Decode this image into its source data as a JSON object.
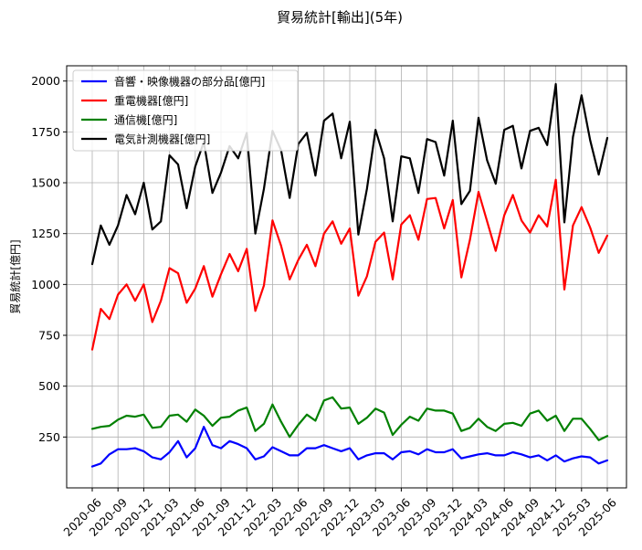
{
  "chart_data": {
    "type": "line",
    "title": "貿易統計[輸出](5年)",
    "xlabel": "",
    "ylabel": "貿易統計[億円]",
    "ylim": [
      0,
      2075
    ],
    "yticks": [
      250,
      500,
      750,
      1000,
      1250,
      1500,
      1750,
      2000
    ],
    "xtick_labels": [
      "2020-06",
      "2020-09",
      "2020-12",
      "2021-03",
      "2021-06",
      "2021-09",
      "2021-12",
      "2022-03",
      "2022-06",
      "2022-09",
      "2022-12",
      "2023-03",
      "2023-06",
      "2023-09",
      "2023-12",
      "2024-03",
      "2024-06",
      "2024-09",
      "2024-12",
      "2025-03",
      "2025-06"
    ],
    "grid": true,
    "legend_position": "top-left",
    "categories": [
      "2020-06",
      "2020-07",
      "2020-08",
      "2020-09",
      "2020-10",
      "2020-11",
      "2020-12",
      "2021-01",
      "2021-02",
      "2021-03",
      "2021-04",
      "2021-05",
      "2021-06",
      "2021-07",
      "2021-08",
      "2021-09",
      "2021-10",
      "2021-11",
      "2021-12",
      "2022-01",
      "2022-02",
      "2022-03",
      "2022-04",
      "2022-05",
      "2022-06",
      "2022-07",
      "2022-08",
      "2022-09",
      "2022-10",
      "2022-11",
      "2022-12",
      "2023-01",
      "2023-02",
      "2023-03",
      "2023-04",
      "2023-05",
      "2023-06",
      "2023-07",
      "2023-08",
      "2023-09",
      "2023-10",
      "2023-11",
      "2023-12",
      "2024-01",
      "2024-02",
      "2024-03",
      "2024-04",
      "2024-05",
      "2024-06",
      "2024-07",
      "2024-08",
      "2024-09",
      "2024-10",
      "2024-11",
      "2024-12",
      "2025-01",
      "2025-02",
      "2025-03",
      "2025-04",
      "2025-05",
      "2025-06"
    ],
    "series": [
      {
        "name": "音響・映像機器の部分品[億円]",
        "color": "#0000ff",
        "values": [
          105,
          120,
          165,
          190,
          190,
          195,
          180,
          150,
          140,
          175,
          230,
          150,
          195,
          300,
          210,
          195,
          230,
          215,
          195,
          140,
          155,
          200,
          180,
          160,
          160,
          195,
          195,
          210,
          195,
          180,
          195,
          140,
          160,
          170,
          170,
          140,
          175,
          180,
          165,
          190,
          175,
          175,
          190,
          145,
          155,
          165,
          170,
          160,
          160,
          175,
          165,
          150,
          160,
          135,
          160,
          130,
          145,
          155,
          150,
          120,
          135
        ]
      },
      {
        "name": "重電機器[億円]",
        "color": "#ff0000",
        "values": [
          680,
          880,
          830,
          950,
          1000,
          920,
          1000,
          815,
          920,
          1080,
          1055,
          910,
          980,
          1090,
          940,
          1050,
          1150,
          1065,
          1175,
          870,
          995,
          1315,
          1190,
          1025,
          1120,
          1195,
          1090,
          1250,
          1310,
          1200,
          1275,
          945,
          1040,
          1210,
          1255,
          1025,
          1295,
          1340,
          1220,
          1420,
          1425,
          1275,
          1415,
          1035,
          1220,
          1455,
          1310,
          1165,
          1340,
          1440,
          1315,
          1255,
          1340,
          1285,
          1515,
          975,
          1290,
          1380,
          1280,
          1155,
          1240
        ]
      },
      {
        "name": "通信機[億円]",
        "color": "#008000",
        "values": [
          290,
          300,
          305,
          335,
          355,
          350,
          360,
          295,
          300,
          355,
          360,
          325,
          385,
          355,
          305,
          345,
          350,
          380,
          395,
          280,
          315,
          410,
          325,
          250,
          310,
          360,
          330,
          430,
          445,
          390,
          395,
          315,
          345,
          390,
          370,
          260,
          310,
          350,
          330,
          390,
          380,
          380,
          365,
          280,
          295,
          340,
          300,
          280,
          315,
          320,
          305,
          365,
          380,
          330,
          355,
          280,
          340,
          340,
          290,
          235,
          255
        ]
      },
      {
        "name": "電気計測機器[億円]",
        "color": "#000000",
        "values": [
          1100,
          1290,
          1195,
          1290,
          1440,
          1345,
          1500,
          1270,
          1310,
          1635,
          1590,
          1375,
          1580,
          1700,
          1450,
          1550,
          1680,
          1620,
          1745,
          1250,
          1470,
          1755,
          1660,
          1425,
          1690,
          1745,
          1535,
          1805,
          1840,
          1620,
          1800,
          1245,
          1470,
          1760,
          1620,
          1310,
          1630,
          1620,
          1450,
          1715,
          1700,
          1535,
          1805,
          1395,
          1460,
          1820,
          1610,
          1495,
          1760,
          1780,
          1570,
          1755,
          1770,
          1685,
          1985,
          1305,
          1725,
          1930,
          1710,
          1540,
          1720
        ]
      }
    ]
  }
}
